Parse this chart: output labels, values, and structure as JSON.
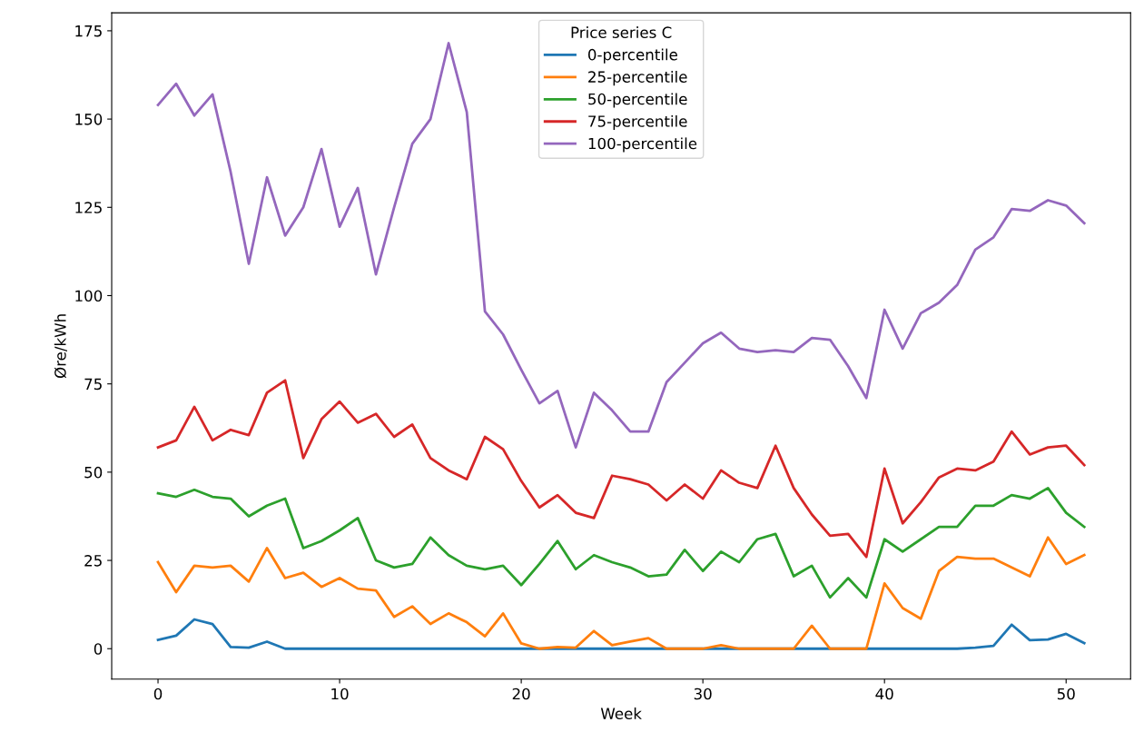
{
  "chart_data": {
    "type": "line",
    "xlabel": "Week",
    "ylabel": "Øre/kWh",
    "legend_title": "Price series C",
    "legend": "top center",
    "grid": false,
    "x": [
      0,
      1,
      2,
      3,
      4,
      5,
      6,
      7,
      8,
      9,
      10,
      11,
      12,
      13,
      14,
      15,
      16,
      17,
      18,
      19,
      20,
      21,
      22,
      23,
      24,
      25,
      26,
      27,
      28,
      29,
      30,
      31,
      32,
      33,
      34,
      35,
      36,
      37,
      38,
      39,
      40,
      41,
      42,
      43,
      44,
      45,
      46,
      47,
      48,
      49,
      50,
      51
    ],
    "xlim": [
      -2.55,
      53.55
    ],
    "xticks": [
      0,
      10,
      20,
      30,
      40,
      50
    ],
    "ylim": [
      -8.6,
      180.1
    ],
    "yticks": [
      0,
      25,
      50,
      75,
      100,
      125,
      150,
      175
    ],
    "series": [
      {
        "name": "0-percentile",
        "color": "#1f77b4",
        "values": [
          2.5,
          3.7,
          8.3,
          7,
          0.5,
          0.3,
          2,
          0,
          0,
          0,
          0,
          0,
          0,
          0,
          0,
          0,
          0,
          0,
          0,
          0,
          0,
          0,
          0,
          0,
          0,
          0,
          0,
          0,
          0,
          0,
          0,
          0,
          0,
          0,
          0,
          0,
          0,
          0,
          0,
          0,
          0,
          0,
          0,
          0,
          0,
          0.3,
          0.8,
          6.8,
          2.4,
          2.6,
          4.2,
          1.6
        ]
      },
      {
        "name": "25-percentile",
        "color": "#ff7f0e",
        "values": [
          24.5,
          16,
          23.5,
          23,
          23.5,
          19,
          28.5,
          20,
          21.5,
          17.5,
          20,
          17,
          16.5,
          9,
          12,
          7,
          10,
          7.5,
          3.5,
          10,
          1.5,
          0,
          0.5,
          0.3,
          5,
          1,
          2,
          3,
          0,
          0,
          0,
          1,
          0,
          0,
          0,
          0,
          6.5,
          0,
          0,
          0,
          18.5,
          11.5,
          8.5,
          22,
          26,
          25.5,
          25.5,
          23,
          20.5,
          31.5,
          24,
          26.5
        ]
      },
      {
        "name": "50-percentile",
        "color": "#2ca02c",
        "values": [
          44,
          43,
          45,
          43,
          42.5,
          37.5,
          40.5,
          42.5,
          28.5,
          30.5,
          33.5,
          37,
          25,
          23,
          24,
          31.5,
          26.5,
          23.5,
          22.5,
          23.5,
          18,
          24,
          30.5,
          22.5,
          26.5,
          24.5,
          23,
          20.5,
          21,
          28,
          22,
          27.5,
          24.5,
          31,
          32.5,
          20.5,
          23.5,
          14.5,
          20,
          14.5,
          31,
          27.5,
          31,
          34.5,
          34.5,
          40.5,
          40.5,
          43.5,
          42.5,
          45.5,
          38.5,
          34.5
        ]
      },
      {
        "name": "75-percentile",
        "color": "#d62728",
        "values": [
          57,
          59,
          68.5,
          59,
          62,
          60.5,
          72.5,
          76,
          54,
          65,
          70,
          64,
          66.5,
          60,
          63.5,
          54,
          50.5,
          48,
          60,
          56.5,
          47.5,
          40,
          43.5,
          38.5,
          37,
          49,
          48,
          46.5,
          42,
          46.5,
          42.5,
          50.5,
          47,
          45.5,
          57.5,
          45.5,
          38,
          32,
          32.5,
          26,
          51,
          35.5,
          41.5,
          48.5,
          51,
          50.5,
          53,
          61.5,
          55,
          57,
          57.5,
          52
        ]
      },
      {
        "name": "100-percentile",
        "color": "#9467bd",
        "values": [
          154,
          160,
          151,
          157,
          135,
          109,
          133.5,
          117,
          125,
          141.5,
          119.5,
          130.5,
          106,
          125,
          143,
          150,
          171.5,
          152,
          95.5,
          89,
          79,
          69.5,
          73,
          57,
          72.5,
          67.5,
          61.5,
          61.5,
          75.5,
          81,
          86.5,
          89.5,
          85,
          84,
          84.5,
          84,
          88,
          87.5,
          80,
          71,
          96,
          85,
          95,
          98,
          103,
          113,
          116.5,
          124.5,
          124,
          127,
          125.5,
          120.5
        ]
      }
    ]
  }
}
